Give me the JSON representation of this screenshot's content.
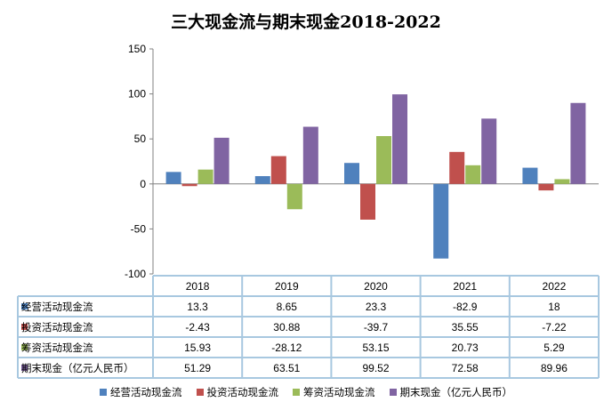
{
  "chart_data": {
    "type": "bar",
    "title": "三大现金流与期末现金2018-2022",
    "categories": [
      "2018",
      "2019",
      "2020",
      "2021",
      "2022"
    ],
    "ylim": [
      -100,
      150
    ],
    "yticks": [
      "150",
      "100",
      "50",
      "0",
      "-50",
      "-100"
    ],
    "series": [
      {
        "name": "经营活动现金流",
        "color": "#4F81BD",
        "values": [
          13.3,
          8.65,
          23.3,
          -82.9,
          18
        ],
        "labels": [
          "13.3",
          "8.65",
          "23.3",
          "-82.9",
          "18"
        ]
      },
      {
        "name": "投资活动现金流",
        "color": "#C0504D",
        "values": [
          -2.43,
          30.88,
          -39.7,
          35.55,
          -7.22
        ],
        "labels": [
          "-2.43",
          "30.88",
          "-39.7",
          "35.55",
          "-7.22"
        ]
      },
      {
        "name": "筹资活动现金流",
        "color": "#9BBB59",
        "values": [
          15.93,
          -28.12,
          53.15,
          20.73,
          5.29
        ],
        "labels": [
          "15.93",
          "-28.12",
          "53.15",
          "20.73",
          "5.29"
        ]
      },
      {
        "name": "期末现金（亿元人民币）",
        "color": "#8064A2",
        "values": [
          51.29,
          63.51,
          99.52,
          72.58,
          89.96
        ],
        "labels": [
          "51.29",
          "63.51",
          "99.52",
          "72.58",
          "89.96"
        ]
      }
    ],
    "legend": "bottom",
    "grid": false,
    "data_table": true
  }
}
